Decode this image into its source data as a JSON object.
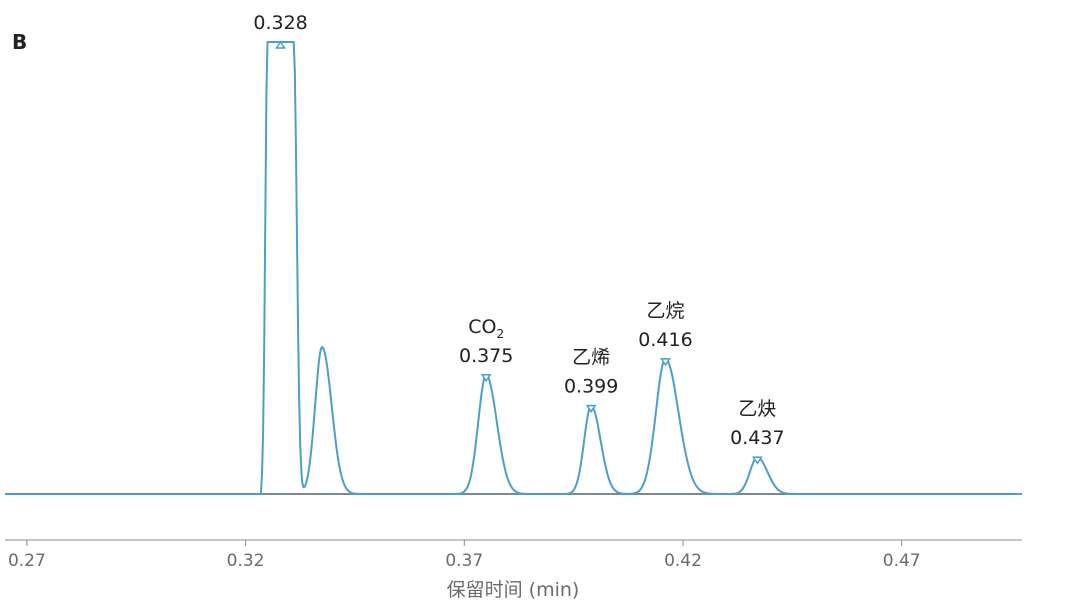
{
  "panel_label": "B",
  "chart_data": {
    "type": "line",
    "xlabel": "保留时间 (min)",
    "ylabel": "",
    "xlim": [
      0.265,
      0.4975
    ],
    "ylim": [
      -0.2,
      4.6
    ],
    "x_ticks": [
      "0.27",
      "0.32",
      "0.37",
      "0.42",
      "0.47"
    ],
    "grid": false,
    "line_color": "#4aa0c8",
    "baseline_color": "#7a8a94",
    "axis_color": "#8c8c8c",
    "series": [
      {
        "peaks": [
          {
            "rt": 0.328,
            "height": 4.55,
            "width": 0.0032,
            "flat_top": true,
            "label": "0.328",
            "compound": ""
          },
          {
            "rt": 0.3375,
            "height": 1.48,
            "width": 0.0016,
            "label": "",
            "compound": ""
          },
          {
            "rt": 0.375,
            "height": 1.2,
            "width": 0.0018,
            "label": "0.375",
            "compound": "CO",
            "compound_sub": "2"
          },
          {
            "rt": 0.399,
            "height": 0.89,
            "width": 0.0016,
            "label": "0.399",
            "compound": "乙烯"
          },
          {
            "rt": 0.416,
            "height": 1.36,
            "width": 0.0022,
            "label": "0.416",
            "compound": "乙烷"
          },
          {
            "rt": 0.437,
            "height": 0.37,
            "width": 0.0017,
            "label": "0.437",
            "compound": "乙炔"
          }
        ]
      }
    ]
  }
}
